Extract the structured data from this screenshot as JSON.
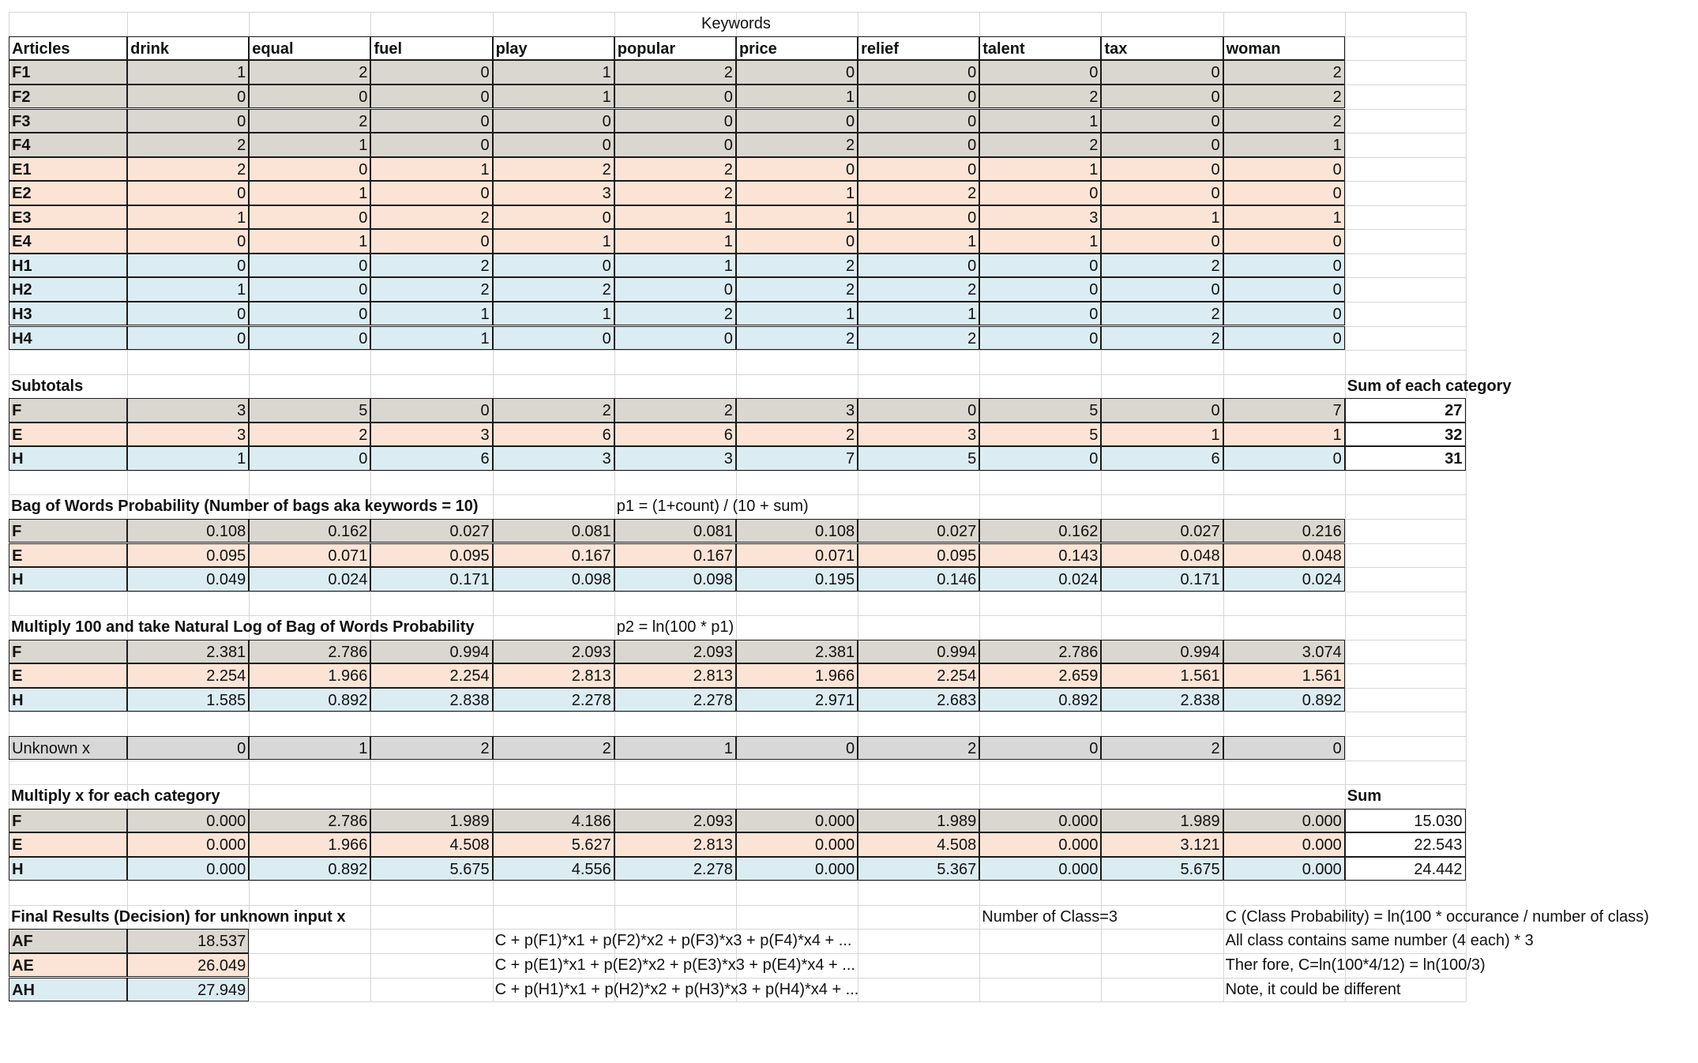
{
  "sheet": {
    "keywords_header": "Keywords",
    "articles_label": "Articles",
    "keywords": [
      "drink",
      "equal",
      "fuel",
      "play",
      "popular",
      "price",
      "relief",
      "talent",
      "tax",
      "woman"
    ],
    "articles": [
      {
        "label": "F1",
        "values": [
          "1",
          "2",
          "0",
          "1",
          "2",
          "0",
          "0",
          "0",
          "0",
          "2"
        ]
      },
      {
        "label": "F2",
        "values": [
          "0",
          "0",
          "0",
          "1",
          "0",
          "1",
          "0",
          "2",
          "0",
          "2"
        ]
      },
      {
        "label": "F3",
        "values": [
          "0",
          "2",
          "0",
          "0",
          "0",
          "0",
          "0",
          "1",
          "0",
          "2"
        ]
      },
      {
        "label": "F4",
        "values": [
          "2",
          "1",
          "0",
          "0",
          "0",
          "2",
          "0",
          "2",
          "0",
          "1"
        ]
      },
      {
        "label": "E1",
        "values": [
          "2",
          "0",
          "1",
          "2",
          "2",
          "0",
          "0",
          "1",
          "0",
          "0"
        ]
      },
      {
        "label": "E2",
        "values": [
          "0",
          "1",
          "0",
          "3",
          "2",
          "1",
          "2",
          "0",
          "0",
          "0"
        ]
      },
      {
        "label": "E3",
        "values": [
          "1",
          "0",
          "2",
          "0",
          "1",
          "1",
          "0",
          "3",
          "1",
          "1"
        ]
      },
      {
        "label": "E4",
        "values": [
          "0",
          "1",
          "0",
          "1",
          "1",
          "0",
          "1",
          "1",
          "0",
          "0"
        ]
      },
      {
        "label": "H1",
        "values": [
          "0",
          "0",
          "2",
          "0",
          "1",
          "2",
          "0",
          "0",
          "2",
          "0"
        ]
      },
      {
        "label": "H2",
        "values": [
          "1",
          "0",
          "2",
          "2",
          "0",
          "2",
          "2",
          "0",
          "0",
          "0"
        ]
      },
      {
        "label": "H3",
        "values": [
          "0",
          "0",
          "1",
          "1",
          "2",
          "1",
          "1",
          "0",
          "2",
          "0"
        ]
      },
      {
        "label": "H4",
        "values": [
          "0",
          "0",
          "1",
          "0",
          "0",
          "2",
          "2",
          "0",
          "2",
          "0"
        ]
      }
    ],
    "subtotals": {
      "title": "Subtotals",
      "sum_label": "Sum of each category",
      "rows": [
        {
          "label": "F",
          "values": [
            "3",
            "5",
            "0",
            "2",
            "2",
            "3",
            "0",
            "5",
            "0",
            "7"
          ],
          "sum": "27"
        },
        {
          "label": "E",
          "values": [
            "3",
            "2",
            "3",
            "6",
            "6",
            "2",
            "3",
            "5",
            "1",
            "1"
          ],
          "sum": "32"
        },
        {
          "label": "H",
          "values": [
            "1",
            "0",
            "6",
            "3",
            "3",
            "7",
            "5",
            "0",
            "6",
            "0"
          ],
          "sum": "31"
        }
      ]
    },
    "bow": {
      "title": "Bag of Words Probability (Number of bags aka keywords = 10)",
      "formula": "p1 = (1+count) / (10 + sum)",
      "rows": [
        {
          "label": "F",
          "values": [
            "0.108",
            "0.162",
            "0.027",
            "0.081",
            "0.081",
            "0.108",
            "0.027",
            "0.162",
            "0.027",
            "0.216"
          ]
        },
        {
          "label": "E",
          "values": [
            "0.095",
            "0.071",
            "0.095",
            "0.167",
            "0.167",
            "0.071",
            "0.095",
            "0.143",
            "0.048",
            "0.048"
          ]
        },
        {
          "label": "H",
          "values": [
            "0.049",
            "0.024",
            "0.171",
            "0.098",
            "0.098",
            "0.195",
            "0.146",
            "0.024",
            "0.171",
            "0.024"
          ]
        }
      ]
    },
    "ln": {
      "title": "Multiply 100 and take Natural Log of Bag of Words Probability",
      "formula": "p2 = ln(100 * p1)",
      "rows": [
        {
          "label": "F",
          "values": [
            "2.381",
            "2.786",
            "0.994",
            "2.093",
            "2.093",
            "2.381",
            "0.994",
            "2.786",
            "0.994",
            "3.074"
          ]
        },
        {
          "label": "E",
          "values": [
            "2.254",
            "1.966",
            "2.254",
            "2.813",
            "2.813",
            "1.966",
            "2.254",
            "2.659",
            "1.561",
            "1.561"
          ]
        },
        {
          "label": "H",
          "values": [
            "1.585",
            "0.892",
            "2.838",
            "2.278",
            "2.278",
            "2.971",
            "2.683",
            "0.892",
            "2.838",
            "0.892"
          ]
        }
      ]
    },
    "unknown": {
      "label": "Unknown x",
      "values": [
        "0",
        "1",
        "2",
        "2",
        "1",
        "0",
        "2",
        "0",
        "2",
        "0"
      ]
    },
    "mult": {
      "title": "Multiply x for each category",
      "sum_label": "Sum",
      "rows": [
        {
          "label": "F",
          "values": [
            "0.000",
            "2.786",
            "1.989",
            "4.186",
            "2.093",
            "0.000",
            "1.989",
            "0.000",
            "1.989",
            "0.000"
          ],
          "sum": "15.030"
        },
        {
          "label": "E",
          "values": [
            "0.000",
            "1.966",
            "4.508",
            "5.627",
            "2.813",
            "0.000",
            "4.508",
            "0.000",
            "3.121",
            "0.000"
          ],
          "sum": "22.543"
        },
        {
          "label": "H",
          "values": [
            "0.000",
            "0.892",
            "5.675",
            "4.556",
            "2.278",
            "0.000",
            "5.367",
            "0.000",
            "5.675",
            "0.000"
          ],
          "sum": "24.442"
        }
      ]
    },
    "final": {
      "title": "Final Results (Decision) for unknown input x",
      "class_count": "Number of Class=3",
      "rows": [
        {
          "label": "AF",
          "value": "18.537",
          "formula": "C + p(F1)*x1 + p(F2)*x2 + p(F3)*x3 + p(F4)*x4 + ..."
        },
        {
          "label": "AE",
          "value": "26.049",
          "formula": "C + p(E1)*x1 + p(E2)*x2 + p(E3)*x3 + p(E4)*x4 + ..."
        },
        {
          "label": "AH",
          "value": "27.949",
          "formula": "C + p(H1)*x1 + p(H2)*x2 + p(H3)*x3 + p(H4)*x4 + ..."
        }
      ],
      "notes": [
        "C (Class Probability) = ln(100 * occurance / number of class)",
        "All class contains same number (4 each) * 3",
        "Ther fore, C=ln(100*4/12) = ln(100/3)",
        "Note, it could be different"
      ]
    },
    "colors": {
      "f_fill": "#dad7d0",
      "e_fill": "#fbe4d5",
      "h_fill": "#dcecf3",
      "x_fill": "#d8d8d8",
      "border": "#1a1a1a",
      "grid": "#d6d6d6"
    }
  }
}
